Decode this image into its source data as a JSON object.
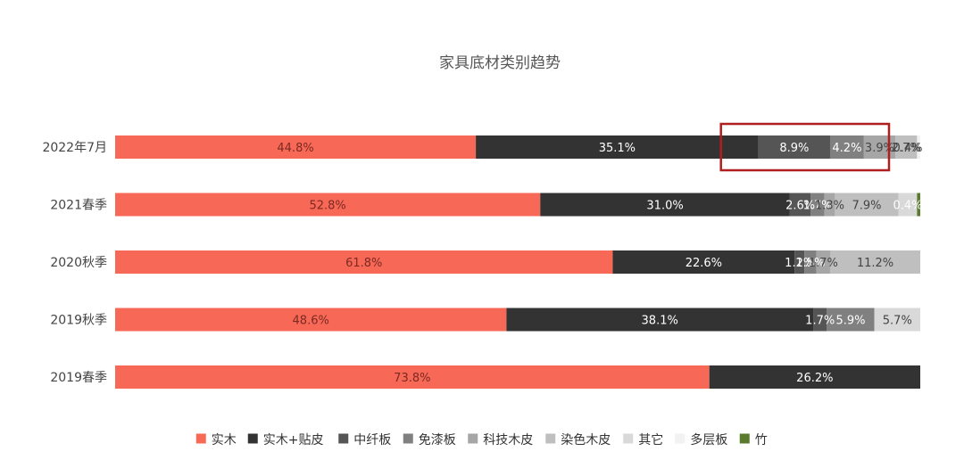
{
  "chart_data": {
    "type": "bar",
    "orientation": "horizontal",
    "stacked": "percent",
    "title": "家具底材类别趋势",
    "categories": [
      "2022年7月",
      "2021春季",
      "2020秋季",
      "2019秋季",
      "2019春季"
    ],
    "series": [
      {
        "name": "实木",
        "color": "#f86856",
        "values": [
          44.8,
          52.8,
          61.8,
          48.6,
          73.8
        ],
        "labels": [
          "44.8%",
          "52.8%",
          "61.8%",
          "48.6%",
          "73.8%"
        ]
      },
      {
        "name": "实木+贴皮",
        "color": "#333333",
        "values": [
          35.1,
          31.0,
          22.6,
          38.1,
          26.2
        ],
        "labels": [
          "35.1%",
          "31.0%",
          "22.6%",
          "38.1%",
          "26.2%"
        ]
      },
      {
        "name": "中纤板",
        "color": "#555555",
        "values": [
          8.9,
          2.6,
          1.2,
          1.7,
          0
        ],
        "labels": [
          "8.9%",
          "2.6%",
          "1.2%",
          "1.7%",
          ""
        ]
      },
      {
        "name": "免漆板",
        "color": "#808080",
        "values": [
          4.2,
          1.7,
          1.5,
          5.9,
          0
        ],
        "labels": [
          "4.2%",
          "1.7%",
          "1.5%",
          "5.9%",
          ""
        ]
      },
      {
        "name": "科技木皮",
        "color": "#a6a6a6",
        "values": [
          3.9,
          1.3,
          1.7,
          0,
          0
        ],
        "labels": [
          "3.9%",
          "1.3%",
          "1.7%",
          "",
          ""
        ]
      },
      {
        "name": "染色木皮",
        "color": "#bfbfbf",
        "values": [
          2.7,
          7.9,
          11.2,
          0,
          0
        ],
        "labels": [
          "2.7%",
          "7.9%",
          "11.2%",
          "",
          ""
        ]
      },
      {
        "name": "其它",
        "color": "#d9d9d9",
        "values": [
          0,
          2.3,
          0,
          5.7,
          0
        ],
        "labels": [
          "",
          "",
          "",
          "5.7%",
          ""
        ]
      },
      {
        "name": "多层板",
        "color": "#f2f2f2",
        "values": [
          0.4,
          0,
          0,
          0,
          0
        ],
        "labels": [
          "0.4%",
          "",
          "",
          "",
          ""
        ]
      },
      {
        "name": "竹",
        "color": "#5a7a2e",
        "values": [
          0,
          0.4,
          0,
          0,
          0
        ],
        "labels": [
          "",
          "0.4%",
          "",
          "",
          ""
        ]
      }
    ],
    "xlim": [
      0,
      100
    ],
    "grid": false,
    "legend_position": "bottom",
    "highlight": {
      "category": "2022年7月",
      "series": "中纤板",
      "color": "#b01e1e"
    }
  }
}
